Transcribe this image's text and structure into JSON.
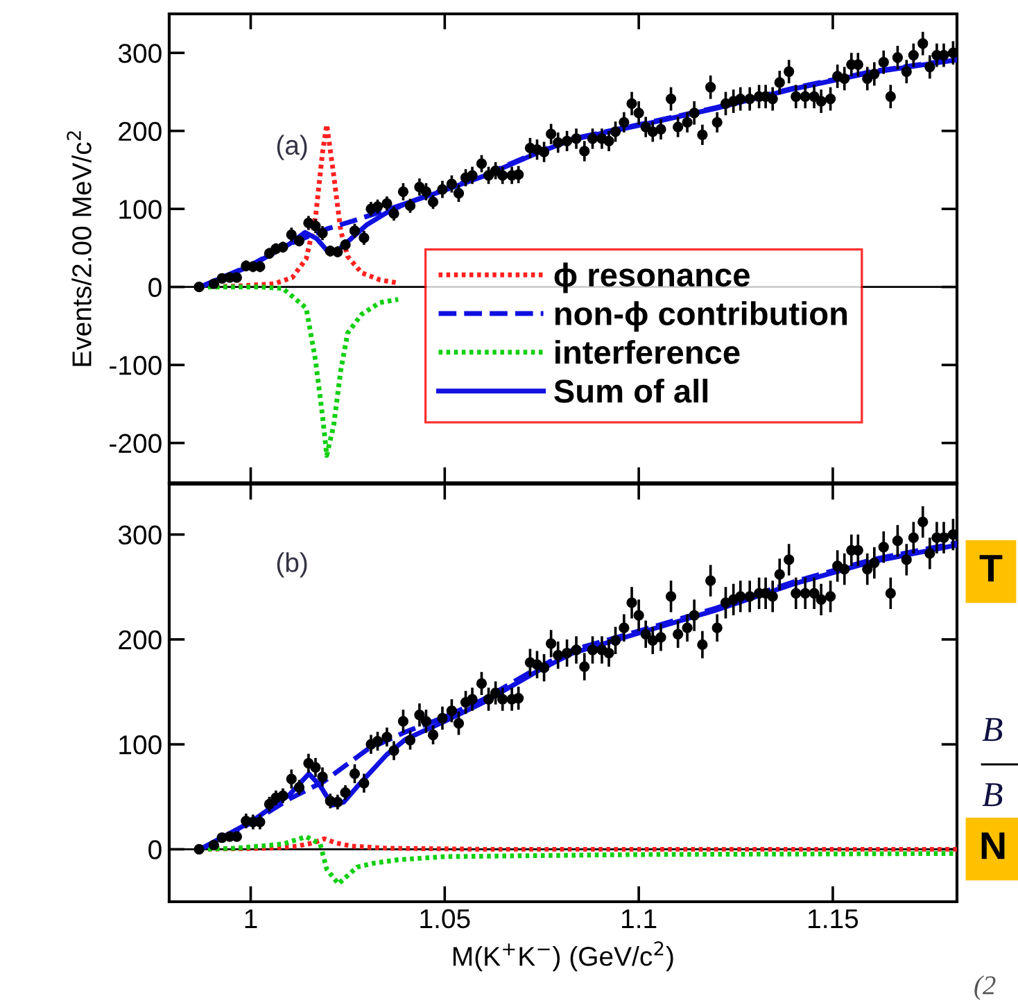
{
  "chart_data": [
    {
      "type": "scatter",
      "ylabel": "Events/2.00 MeV/c$^{2}$",
      "annotations": [
        "(a)"
      ],
      "xlim": [
        0.979,
        1.182
      ],
      "ylim": [
        -251,
        350
      ],
      "xticks": [
        1,
        1.05,
        1.1,
        1.15
      ],
      "yticks": [
        -200,
        -100,
        0,
        100,
        200,
        300
      ],
      "tick_labels": "y",
      "legend": "right",
      "grid": false,
      "ref_lines": [
        {
          "axis": "y",
          "value": 0,
          "color": "#000000"
        }
      ],
      "series": [
        {
          "type": "scatter",
          "color": "#000000",
          "marker": "circle",
          "x": [
            0.9867,
            0.9905,
            0.9926,
            0.9946,
            0.9964,
            0.9988,
            1.0006,
            1.0024,
            1.0048,
            1.0065,
            1.0083,
            1.0105,
            1.0125,
            1.0149,
            1.0167,
            1.0185,
            1.0205,
            1.0224,
            1.0244,
            1.0268,
            1.0292,
            1.031,
            1.0327,
            1.0351,
            1.0369,
            1.0393,
            1.0411,
            1.0435,
            1.0452,
            1.047,
            1.0494,
            1.0518,
            1.0536,
            1.0554,
            1.0571,
            1.0595,
            1.0613,
            1.0631,
            1.0649,
            1.0673,
            1.069,
            1.072,
            1.0738,
            1.0756,
            1.0774,
            1.0792,
            1.0815,
            1.0839,
            1.086,
            1.0881,
            1.0905,
            1.0923,
            1.094,
            1.0962,
            1.0982,
            1.1,
            1.1018,
            1.1036,
            1.1057,
            1.1083,
            1.1101,
            1.1125,
            1.1143,
            1.1164,
            1.1185,
            1.1202,
            1.1224,
            1.1244,
            1.1262,
            1.1286,
            1.131,
            1.1327,
            1.1345,
            1.1363,
            1.1387,
            1.1405,
            1.1429,
            1.1452,
            1.147,
            1.1494,
            1.1512,
            1.153,
            1.1548,
            1.1565,
            1.1589,
            1.1607,
            1.1631,
            1.1649,
            1.1667,
            1.169,
            1.1708,
            1.1732,
            1.175,
            1.1768,
            1.1786,
            1.181
          ],
          "values": [
            0,
            4,
            11,
            12,
            12,
            27,
            26,
            26,
            43,
            49,
            51,
            67,
            59,
            82,
            78,
            69,
            46,
            45,
            54,
            72,
            63,
            100,
            103,
            107,
            94,
            122,
            104,
            128,
            122,
            109,
            125,
            132,
            120,
            140,
            143,
            158,
            143,
            149,
            143,
            143,
            144,
            178,
            176,
            173,
            196,
            185,
            187,
            190,
            174,
            190,
            190,
            187,
            199,
            211,
            235,
            223,
            205,
            199,
            202,
            241,
            205,
            211,
            223,
            195,
            256,
            211,
            235,
            238,
            241,
            241,
            244,
            244,
            241,
            262,
            276,
            244,
            244,
            244,
            238,
            241,
            270,
            267,
            285,
            285,
            267,
            273,
            288,
            244,
            294,
            276,
            297,
            312,
            282,
            297,
            297,
            300
          ],
          "errors": [
            2,
            3,
            4,
            4,
            4,
            7,
            7,
            7,
            7,
            7,
            7,
            9,
            7,
            9,
            9,
            9,
            7,
            7,
            7,
            9,
            9,
            9,
            9,
            9,
            9,
            11,
            9,
            11,
            11,
            9,
            11,
            11,
            11,
            11,
            11,
            11,
            11,
            11,
            11,
            11,
            11,
            13,
            13,
            13,
            13,
            13,
            13,
            13,
            13,
            13,
            13,
            13,
            13,
            13,
            15,
            15,
            13,
            13,
            13,
            15,
            13,
            13,
            15,
            13,
            15,
            13,
            15,
            15,
            15,
            15,
            15,
            15,
            15,
            15,
            15,
            15,
            15,
            15,
            15,
            15,
            15,
            15,
            15,
            15,
            15,
            15,
            15,
            15,
            15,
            15,
            15,
            15,
            15,
            15,
            15,
            15
          ]
        },
        {
          "type": "line",
          "name": "ϕ resonance",
          "color": "#ff2020",
          "line_style": "dotted",
          "x": [
            0.987,
            0.996,
            1.006,
            1.0107,
            1.0143,
            1.0167,
            1.0185,
            1.0196,
            1.0214,
            1.0232,
            1.025,
            1.0286,
            1.0333,
            1.038
          ],
          "values": [
            0,
            1,
            4,
            12,
            36,
            89,
            172,
            208,
            143,
            72,
            39,
            18,
            9,
            5
          ]
        },
        {
          "type": "line",
          "name": "non-ϕ contribution",
          "color": "#1010e0",
          "line_style": "dashed",
          "x": [
            0.987,
            1.0,
            1.01,
            1.02,
            1.026,
            1.04,
            1.05,
            1.06,
            1.074,
            1.083,
            1.1,
            1.12,
            1.14,
            1.16,
            1.182
          ],
          "values": [
            0,
            28,
            55,
            75,
            84,
            107,
            125,
            143,
            173,
            190,
            208,
            230,
            255,
            276,
            292
          ]
        },
        {
          "type": "line",
          "name": "interference",
          "color": "#10d010",
          "line_style": "dotted",
          "x": [
            0.987,
            1.0024,
            1.0083,
            1.0143,
            1.0167,
            1.0185,
            1.0196,
            1.0214,
            1.0232,
            1.025,
            1.0286,
            1.0333,
            1.038
          ],
          "values": [
            0,
            0,
            -2,
            -27,
            -94,
            -165,
            -216,
            -177,
            -107,
            -59,
            -35,
            -20,
            -16
          ]
        },
        {
          "type": "line",
          "name": "Sum of all",
          "color": "#1010e0",
          "line_style": "solid",
          "x": [
            0.987,
            1.0,
            1.01,
            1.014,
            1.017,
            1.0196,
            1.022,
            1.025,
            1.03,
            1.035,
            1.04,
            1.05,
            1.06,
            1.074,
            1.083,
            1.1,
            1.12,
            1.14,
            1.16,
            1.182
          ],
          "values": [
            0,
            27,
            55,
            70,
            62,
            47,
            45,
            58,
            80,
            95,
            107,
            124,
            142,
            172,
            189,
            207,
            229,
            254,
            275,
            291
          ]
        }
      ]
    },
    {
      "type": "scatter",
      "xlabel": "M(K$^{+}$K$^{−}$) (GeV/c$^{2}$)",
      "annotations": [
        "(b)"
      ],
      "xlim": [
        0.979,
        1.182
      ],
      "ylim": [
        -50,
        348
      ],
      "xticks": [
        1,
        1.05,
        1.1,
        1.15
      ],
      "yticks": [
        0,
        100,
        200,
        300
      ],
      "grid": false,
      "ref_lines": [
        {
          "axis": "y",
          "value": 0,
          "color": "#000000"
        }
      ],
      "series": [
        {
          "type": "scatter",
          "color": "#000000",
          "marker": "circle",
          "x": [
            0.9867,
            0.9905,
            0.9926,
            0.9946,
            0.9964,
            0.9988,
            1.0006,
            1.0024,
            1.0048,
            1.0065,
            1.0083,
            1.0105,
            1.0125,
            1.0149,
            1.0167,
            1.0185,
            1.0205,
            1.0224,
            1.0244,
            1.0268,
            1.0292,
            1.031,
            1.0327,
            1.0351,
            1.0369,
            1.0393,
            1.0411,
            1.0435,
            1.0452,
            1.047,
            1.0494,
            1.0518,
            1.0536,
            1.0554,
            1.0571,
            1.0595,
            1.0613,
            1.0631,
            1.0649,
            1.0673,
            1.069,
            1.072,
            1.0738,
            1.0756,
            1.0774,
            1.0792,
            1.0815,
            1.0839,
            1.086,
            1.0881,
            1.0905,
            1.0923,
            1.094,
            1.0962,
            1.0982,
            1.1,
            1.1018,
            1.1036,
            1.1057,
            1.1083,
            1.1101,
            1.1125,
            1.1143,
            1.1164,
            1.1185,
            1.1202,
            1.1224,
            1.1244,
            1.1262,
            1.1286,
            1.131,
            1.1327,
            1.1345,
            1.1363,
            1.1387,
            1.1405,
            1.1429,
            1.1452,
            1.147,
            1.1494,
            1.1512,
            1.153,
            1.1548,
            1.1565,
            1.1589,
            1.1607,
            1.1631,
            1.1649,
            1.1667,
            1.169,
            1.1708,
            1.1732,
            1.175,
            1.1768,
            1.1786,
            1.181
          ],
          "values": [
            0,
            4,
            11,
            12,
            12,
            27,
            26,
            26,
            43,
            49,
            51,
            67,
            59,
            82,
            78,
            69,
            46,
            45,
            54,
            72,
            63,
            100,
            103,
            107,
            94,
            122,
            104,
            128,
            122,
            109,
            125,
            132,
            120,
            140,
            143,
            158,
            143,
            149,
            143,
            143,
            144,
            178,
            176,
            173,
            196,
            185,
            187,
            190,
            174,
            190,
            190,
            187,
            199,
            211,
            235,
            223,
            205,
            199,
            202,
            241,
            205,
            211,
            223,
            195,
            256,
            211,
            235,
            238,
            241,
            241,
            244,
            244,
            241,
            262,
            276,
            244,
            244,
            244,
            238,
            241,
            270,
            267,
            285,
            285,
            267,
            273,
            288,
            244,
            294,
            276,
            297,
            312,
            282,
            297,
            297,
            300
          ],
          "errors": [
            2,
            3,
            4,
            4,
            4,
            7,
            7,
            7,
            7,
            7,
            7,
            9,
            7,
            9,
            9,
            9,
            7,
            7,
            7,
            9,
            9,
            9,
            9,
            9,
            9,
            11,
            9,
            11,
            11,
            9,
            11,
            11,
            11,
            11,
            11,
            11,
            11,
            11,
            11,
            11,
            11,
            13,
            13,
            13,
            13,
            13,
            13,
            13,
            13,
            13,
            13,
            13,
            13,
            13,
            15,
            15,
            13,
            13,
            13,
            15,
            13,
            13,
            15,
            13,
            15,
            13,
            15,
            15,
            15,
            15,
            15,
            15,
            15,
            15,
            15,
            15,
            15,
            15,
            15,
            15,
            15,
            15,
            15,
            15,
            15,
            15,
            15,
            15,
            15,
            15,
            15,
            15,
            15,
            15,
            15,
            15
          ]
        },
        {
          "type": "line",
          "color": "#ff2020",
          "line_style": "dotted",
          "x": [
            0.987,
            1.005,
            1.012,
            1.016,
            1.019,
            1.022,
            1.026,
            1.035,
            1.06,
            1.182
          ],
          "values": [
            0,
            1,
            3,
            6,
            10,
            6,
            3,
            1,
            0,
            0
          ]
        },
        {
          "type": "line",
          "color": "#1010e0",
          "line_style": "dashed",
          "x": [
            0.987,
            1.0,
            1.01,
            1.019,
            1.03,
            1.04,
            1.05,
            1.06,
            1.074,
            1.083,
            1.1,
            1.12,
            1.14,
            1.16,
            1.182
          ],
          "values": [
            0,
            25,
            48,
            65,
            95,
            112,
            126,
            143,
            173,
            190,
            208,
            230,
            255,
            276,
            292
          ]
        },
        {
          "type": "line",
          "color": "#10d010",
          "line_style": "dotted",
          "x": [
            0.987,
            0.996,
            1.0024,
            1.0083,
            1.0143,
            1.0179,
            1.0196,
            1.0226,
            1.0274,
            1.0321,
            1.038,
            1.05,
            1.1,
            1.182
          ],
          "values": [
            0,
            1,
            3,
            5,
            12,
            5,
            -19,
            -33,
            -17,
            -13,
            -10,
            -7,
            -5,
            -4
          ]
        },
        {
          "type": "line",
          "color": "#1010e0",
          "line_style": "solid",
          "x": [
            0.987,
            1.0,
            1.01,
            1.015,
            1.018,
            1.021,
            1.024,
            1.028,
            1.035,
            1.04,
            1.05,
            1.06,
            1.074,
            1.083,
            1.1,
            1.12,
            1.14,
            1.16,
            1.182
          ],
          "values": [
            0,
            26,
            52,
            72,
            60,
            42,
            45,
            62,
            90,
            105,
            122,
            140,
            170,
            187,
            206,
            228,
            253,
            274,
            290
          ]
        }
      ]
    },
    {
      "type": "other",
      "annotations": [
        "T",
        "B",
        "B",
        "N",
        "(2"
      ]
    }
  ]
}
